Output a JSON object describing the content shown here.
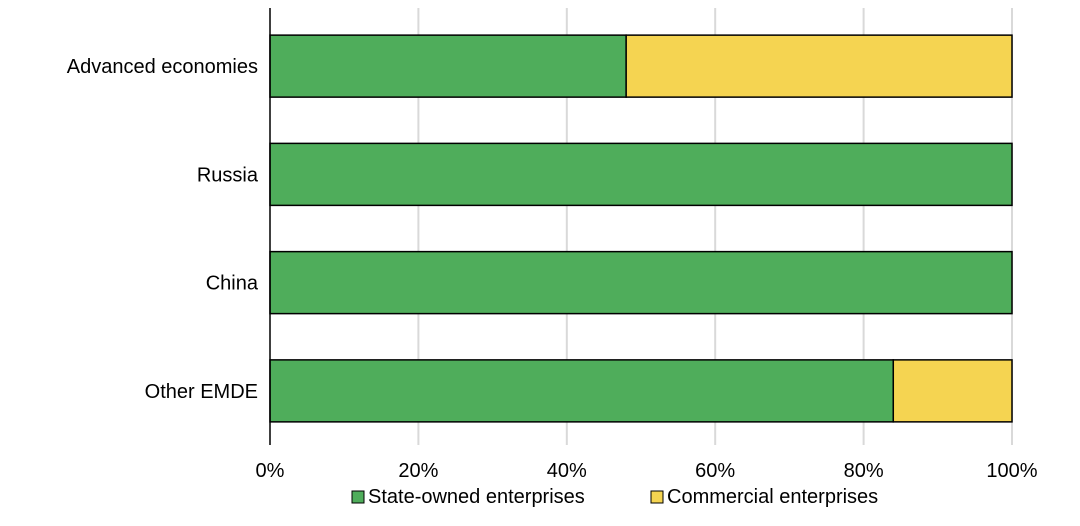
{
  "chart_data": {
    "type": "bar",
    "orientation": "horizontal",
    "stacked": true,
    "categories": [
      "Advanced economies",
      "Russia",
      "China",
      "Other EMDE"
    ],
    "series": [
      {
        "name": "State-owned enterprises",
        "values": [
          48,
          100,
          100,
          84
        ],
        "color": "#4fad5b"
      },
      {
        "name": "Commercial enterprises",
        "values": [
          52,
          0,
          0,
          16
        ],
        "color": "#f5d451"
      }
    ],
    "xlim": [
      0,
      100
    ],
    "xticks": [
      0,
      20,
      40,
      60,
      80,
      100
    ],
    "xtick_labels": [
      "0%",
      "20%",
      "40%",
      "60%",
      "80%",
      "100%"
    ],
    "grid": true,
    "legend_position": "bottom"
  }
}
